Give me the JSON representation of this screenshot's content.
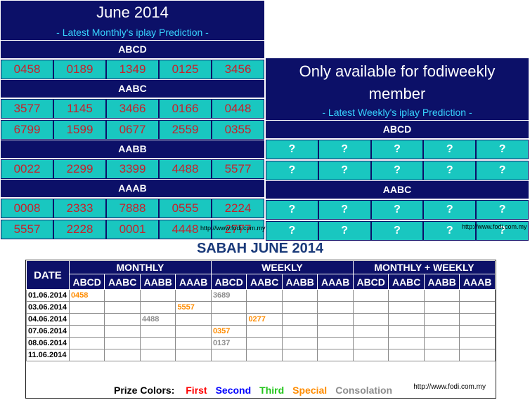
{
  "monthly": {
    "title": "June 2014",
    "subtitle": "- Latest Monthly's iplay Prediction -",
    "sections": [
      {
        "label": "ABCD",
        "rows": [
          [
            "0458",
            "0189",
            "1349",
            "0125",
            "3456"
          ]
        ]
      },
      {
        "label": "AABC",
        "rows": [
          [
            "3577",
            "1145",
            "3466",
            "0166",
            "0448"
          ],
          [
            "6799",
            "1599",
            "0677",
            "2559",
            "0355"
          ]
        ]
      },
      {
        "label": "AABB",
        "rows": [
          [
            "0022",
            "2299",
            "3399",
            "4488",
            "5577"
          ]
        ]
      },
      {
        "label": "AAAB",
        "rows": [
          [
            "0008",
            "2333",
            "7888",
            "0555",
            "2224"
          ],
          [
            "5557",
            "2228",
            "0001",
            "4448",
            "2777"
          ]
        ]
      }
    ],
    "watermark": "http://www.fodi.com.my"
  },
  "weekly": {
    "title": "Only available for fodiweekly member",
    "subtitle": "- Latest Weekly's iplay Prediction -",
    "sections": [
      {
        "label": "ABCD",
        "rows": [
          [
            "?",
            "?",
            "?",
            "?",
            "?"
          ],
          [
            "?",
            "?",
            "?",
            "?",
            "?"
          ]
        ]
      },
      {
        "label": "AABC",
        "rows": [
          [
            "?",
            "?",
            "?",
            "?",
            "?"
          ],
          [
            "?",
            "?",
            "?",
            "?",
            "?"
          ]
        ]
      }
    ],
    "watermark": "http://www.fodi.com.my"
  },
  "results": {
    "title": "SABAH JUNE 2014",
    "date_header": "DATE",
    "groups": [
      "MONTHLY",
      "WEEKLY",
      "MONTHLY + WEEKLY"
    ],
    "subheaders": [
      "ABCD",
      "AABC",
      "AABB",
      "AAAB"
    ],
    "rows": [
      {
        "date": "01.06.2014",
        "cells": [
          {
            "col": 0,
            "value": "0458",
            "color": "special"
          },
          {
            "col": 4,
            "value": "3689",
            "color": "consolation"
          }
        ]
      },
      {
        "date": "03.06.2014",
        "cells": [
          {
            "col": 3,
            "value": "5557",
            "color": "special"
          }
        ]
      },
      {
        "date": "04.06.2014",
        "cells": [
          {
            "col": 2,
            "value": "4488",
            "color": "consolation"
          },
          {
            "col": 5,
            "value": "0277",
            "color": "special"
          }
        ]
      },
      {
        "date": "07.06.2014",
        "cells": [
          {
            "col": 4,
            "value": "0357",
            "color": "special"
          }
        ]
      },
      {
        "date": "08.06.2014",
        "cells": [
          {
            "col": 4,
            "value": "0137",
            "color": "consolation"
          }
        ]
      },
      {
        "date": "11.06.2014",
        "cells": []
      }
    ],
    "legend": {
      "label": "Prize Colors:",
      "items": [
        {
          "text": "First",
          "color": "#ff0000"
        },
        {
          "text": "Second",
          "color": "#0000ff"
        },
        {
          "text": "Third",
          "color": "#22c51a"
        },
        {
          "text": "Special",
          "color": "#ff8c00"
        },
        {
          "text": "Consolation",
          "color": "#8c8c8c"
        }
      ]
    },
    "url": "http://www.fodi.com.my"
  },
  "colors": {
    "navy": "#0c1068",
    "teal": "#19c7c0",
    "number_red": "#c8202a",
    "subtitle_cyan": "#37d4ff",
    "special": "#ff8c00",
    "consolation": "#8c8c8c"
  }
}
